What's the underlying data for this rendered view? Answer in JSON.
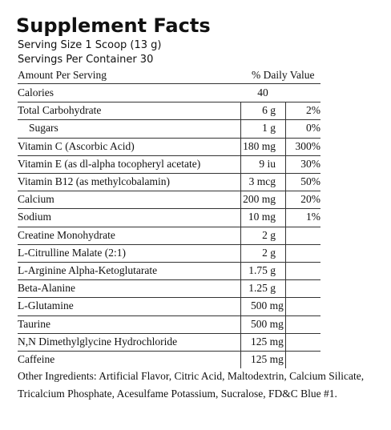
{
  "header": {
    "title": "Supplement Facts",
    "serving_size": "Serving Size 1 Scoop (13 g)",
    "servings_per_container": "Servings Per Container 30"
  },
  "table": {
    "amount_header": "Amount Per Serving",
    "dv_header": "% Daily Value",
    "rows": [
      {
        "name": "Calories",
        "amount": "40"
      },
      {
        "name": "Total Carbohydrate",
        "amount": "6 g",
        "dv": "2%"
      },
      {
        "name": "Sugars",
        "amount": "1 g",
        "dv": "0%",
        "indent": true
      },
      {
        "name": "Vitamin C (Ascorbic Acid)",
        "amount": "180 mg",
        "dv": "300%"
      },
      {
        "name": "Vitamin E (as dl-alpha tocopheryl acetate)",
        "amount": "9 iu",
        "dv": "30%"
      },
      {
        "name": "Vitamin B12 (as methylcobalamin)",
        "amount": "3 mcg",
        "dv": "50%"
      },
      {
        "name": "Calcium",
        "amount": "200 mg",
        "dv": "20%"
      },
      {
        "name": "Sodium",
        "amount": "10 mg",
        "dv": "1%"
      },
      {
        "name": "Creatine Monohydrate",
        "amount": "2 g"
      },
      {
        "name": "L-Citrulline Malate (2:1)",
        "amount": "2 g"
      },
      {
        "name": "L-Arginine Alpha-Ketoglutarate",
        "amount": "1.75 g"
      },
      {
        "name": "Beta-Alanine",
        "amount": "1.25 g"
      },
      {
        "name": "L-Glutamine",
        "amount": "500 mg",
        "left": true
      },
      {
        "name": "Taurine",
        "amount": "500 mg",
        "left": true
      },
      {
        "name": "N,N Dimethylglycine Hydrochloride",
        "amount": "125 mg",
        "left": true
      },
      {
        "name": "Caffeine",
        "amount": "125 mg",
        "left": true
      }
    ]
  },
  "other_ingredients": {
    "line1": "Other Ingredients: Artificial Flavor, Citric Acid, Maltodextrin, Calcium Silicate,",
    "line2": "Tricalcium Phosphate, Acesulfame Potassium, Sucralose, FD&C Blue #1."
  }
}
